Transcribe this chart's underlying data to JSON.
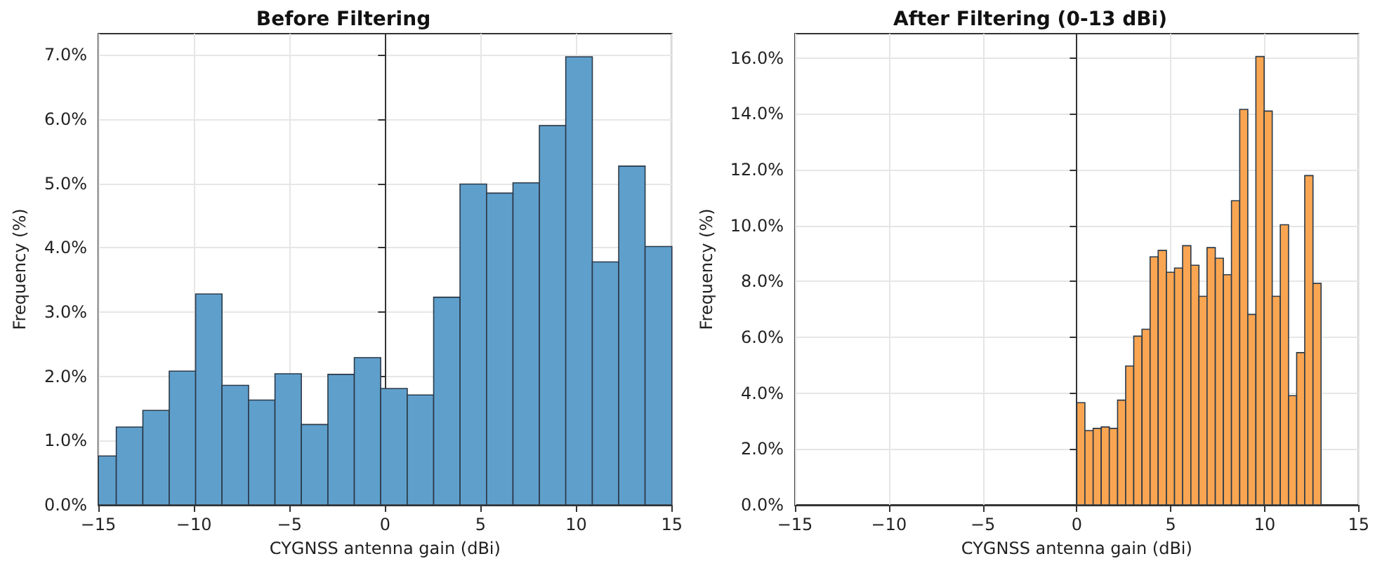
{
  "chart_data": [
    {
      "type": "histogram",
      "title": "Before Filtering",
      "xlabel": "CYGNSS antenna gain (dBi)",
      "ylabel": "Frequency (%)",
      "color": "#5f9fcc",
      "bins": [
        -15,
        -14.06,
        -12.67,
        -11.29,
        -9.91,
        -8.53,
        -7.14,
        -5.76,
        -4.38,
        -2.99,
        -1.61,
        -0.23,
        1.16,
        2.54,
        3.92,
        5.31,
        6.69,
        8.07,
        9.45,
        10.84,
        12.22,
        13.6,
        15
      ],
      "values": [
        0.76,
        1.21,
        1.47,
        2.08,
        3.28,
        1.86,
        1.63,
        2.04,
        1.25,
        2.03,
        2.29,
        1.81,
        1.71,
        3.23,
        4.99,
        4.85,
        5.01,
        5.9,
        6.97,
        3.78,
        5.27,
        4.02
      ],
      "xlim": [
        -15,
        15
      ],
      "xticks": [
        -15,
        -10,
        -5,
        0,
        5,
        10,
        15
      ],
      "ylim": [
        0,
        7.33
      ],
      "yticks": [
        {
          "value": 0,
          "label": "0.0%"
        },
        {
          "value": 1,
          "label": "1.0%"
        },
        {
          "value": 2,
          "label": "2.0%"
        },
        {
          "value": 3,
          "label": "3.0%"
        },
        {
          "value": 4,
          "label": "4.0%"
        },
        {
          "value": 5,
          "label": "5.0%"
        },
        {
          "value": 6,
          "label": "6.0%"
        },
        {
          "value": 7,
          "label": "7.0%"
        }
      ],
      "grid": true
    },
    {
      "type": "histogram",
      "title": "After Filtering (0-13 dBi)",
      "xlabel": "CYGNSS antenna gain (dBi)",
      "ylabel": "Frequency (%)",
      "color": "#f9a552",
      "bins": [
        0,
        0.43,
        0.87,
        1.3,
        1.73,
        2.17,
        2.6,
        3.03,
        3.47,
        3.9,
        4.33,
        4.77,
        5.2,
        5.63,
        6.07,
        6.5,
        6.93,
        7.37,
        7.8,
        8.23,
        8.67,
        9.1,
        9.53,
        9.97,
        10.4,
        10.83,
        11.27,
        11.7,
        12.13,
        12.57,
        13
      ],
      "values": [
        3.66,
        2.66,
        2.74,
        2.79,
        2.74,
        3.75,
        4.97,
        6.04,
        6.29,
        8.88,
        9.11,
        8.33,
        8.48,
        9.28,
        8.58,
        7.47,
        9.21,
        8.83,
        8.24,
        10.89,
        14.16,
        6.82,
        16.05,
        14.1,
        7.47,
        10.03,
        3.91,
        5.45,
        11.79,
        7.93
      ],
      "xlim": [
        -15,
        15
      ],
      "xticks": [
        -15,
        -10,
        -5,
        0,
        5,
        10,
        15
      ],
      "ylim": [
        0,
        16.87
      ],
      "yticks": [
        {
          "value": 0,
          "label": "0.0%"
        },
        {
          "value": 2,
          "label": "2.0%"
        },
        {
          "value": 4,
          "label": "4.0%"
        },
        {
          "value": 6,
          "label": "6.0%"
        },
        {
          "value": 8,
          "label": "8.0%"
        },
        {
          "value": 10,
          "label": "10.0%"
        },
        {
          "value": 12,
          "label": "12.0%"
        },
        {
          "value": 14,
          "label": "14.0%"
        },
        {
          "value": 16,
          "label": "16.0%"
        }
      ],
      "grid": true
    }
  ]
}
